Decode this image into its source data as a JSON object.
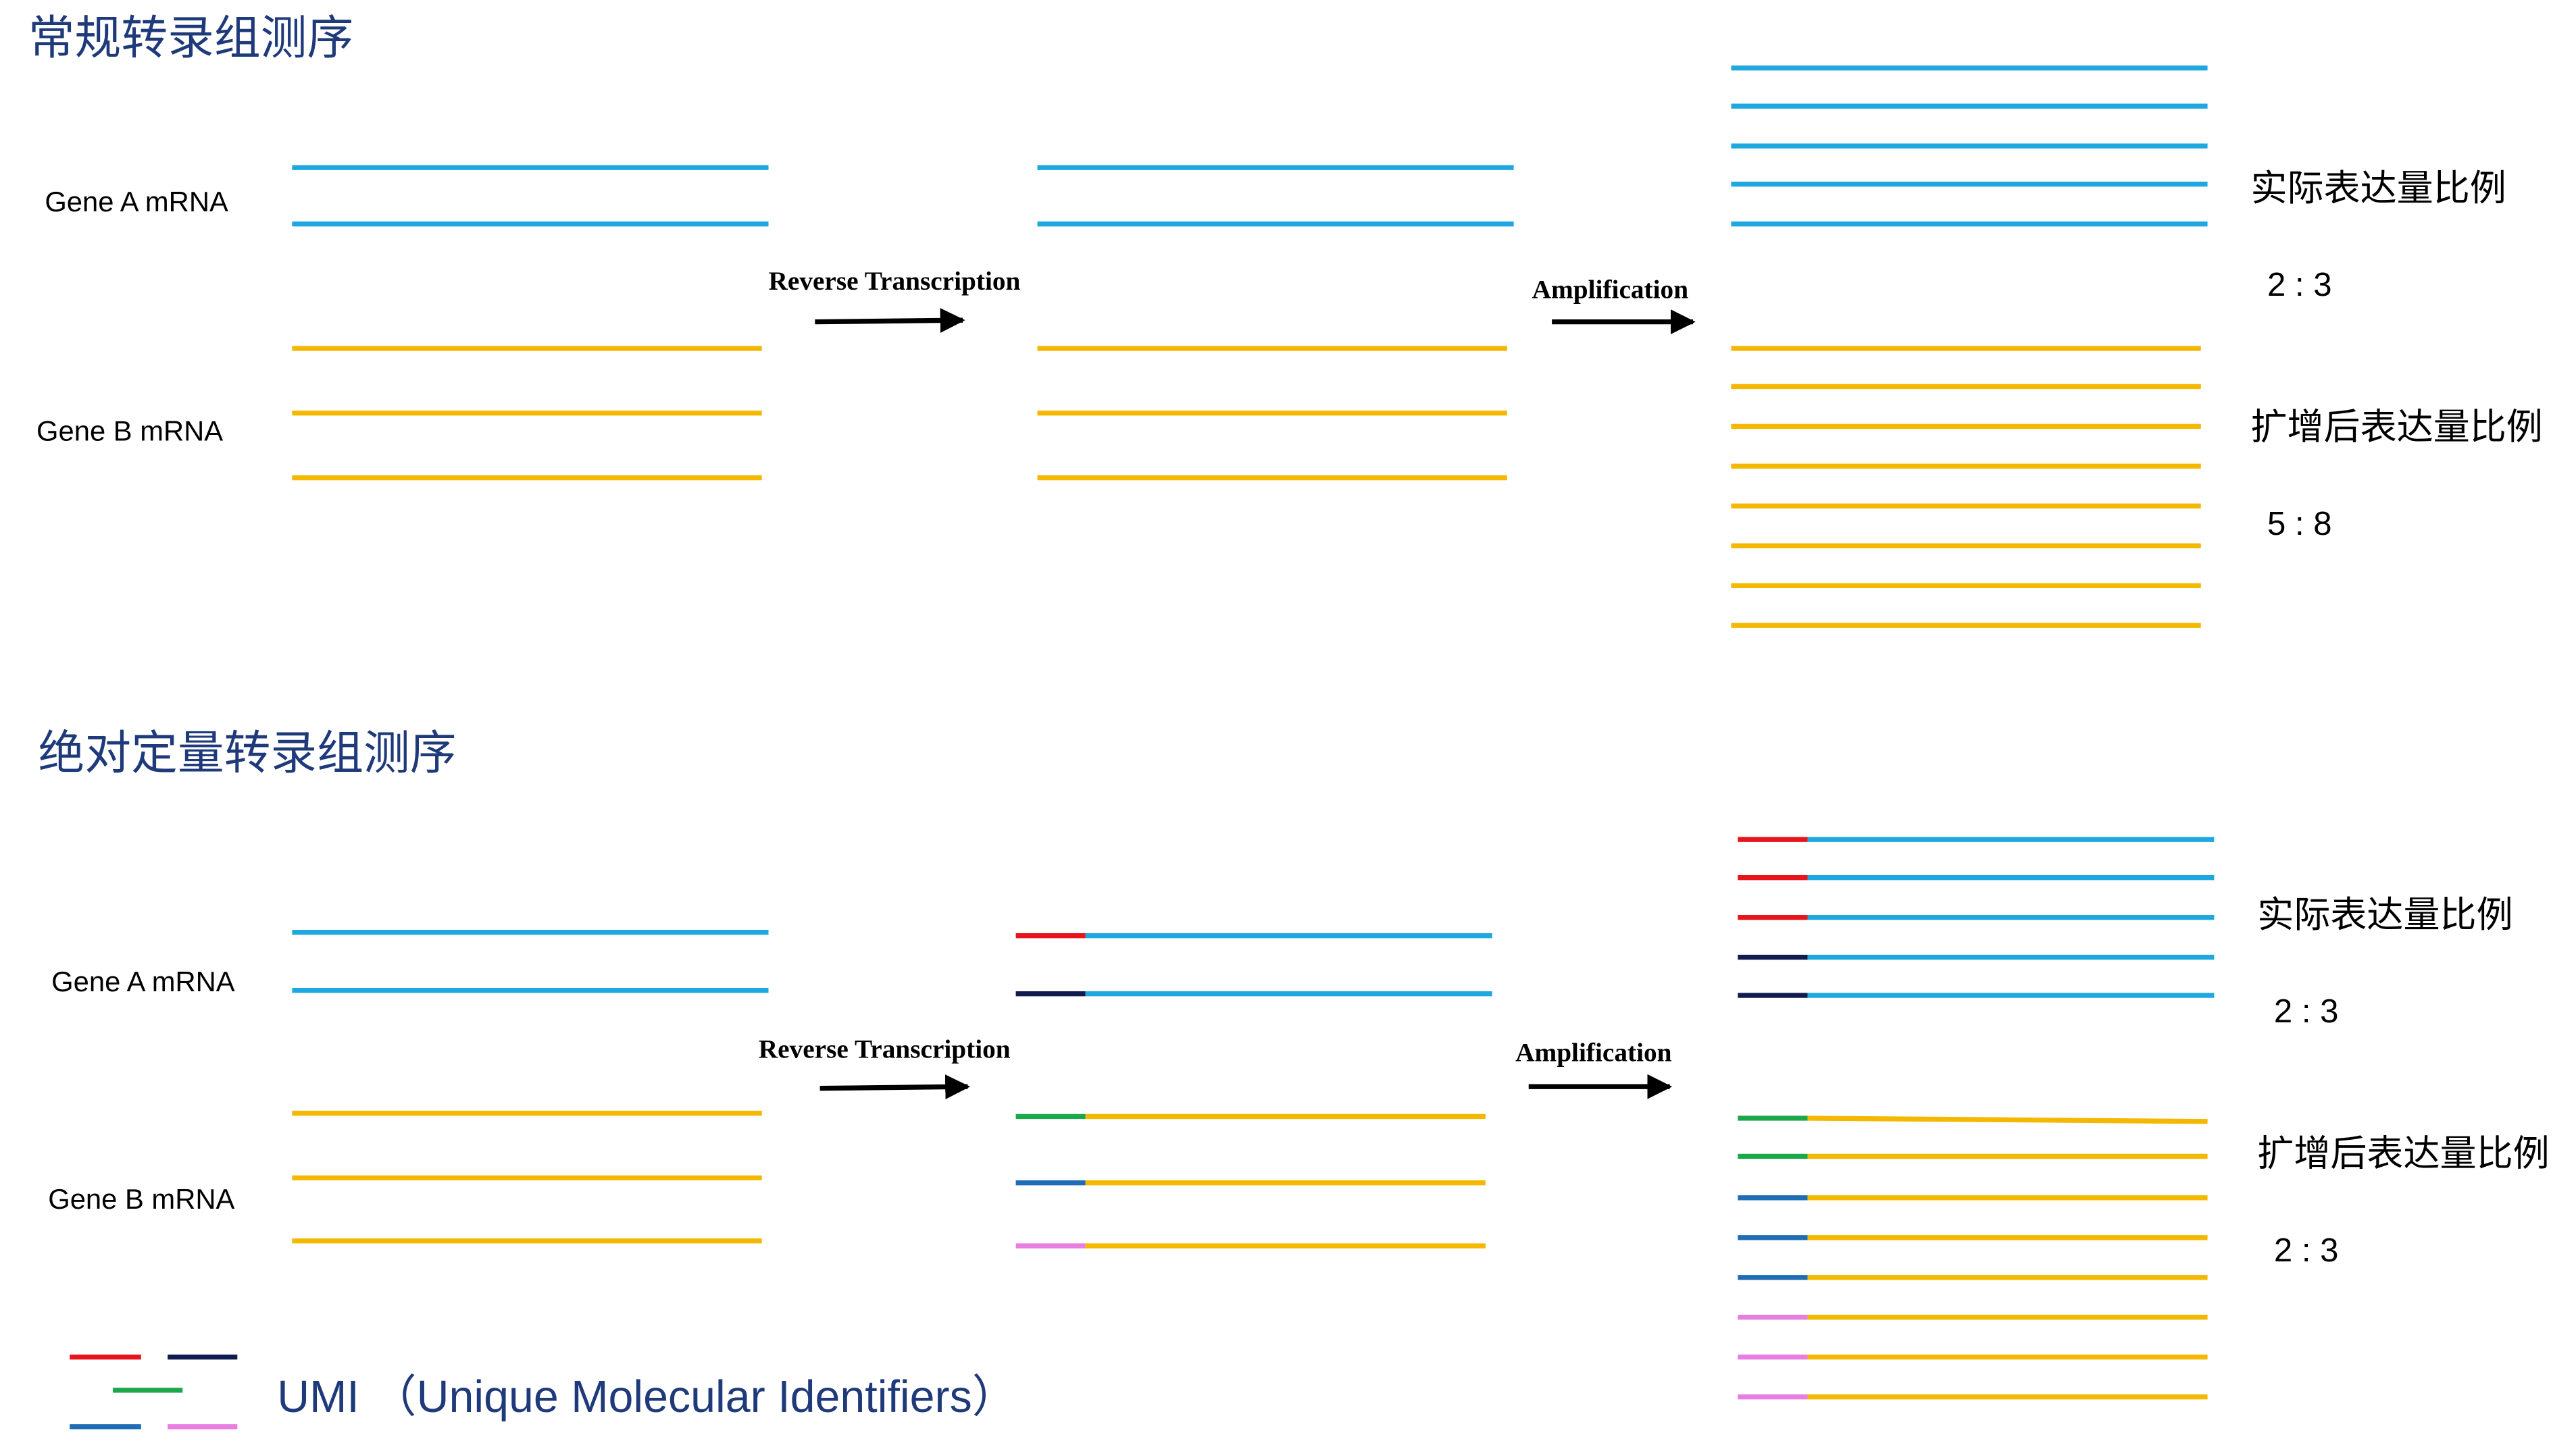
{
  "sections": [
    {
      "title": "常规转录组测序",
      "gene_a": "Gene A mRNA",
      "gene_b": "Gene B mRNA",
      "step1": "Reverse Transcription",
      "step2": "Amplification",
      "actual_label": "实际表达量比例",
      "actual_ratio": "2 : 3",
      "amplified_label": "扩增后表达量比例",
      "amplified_ratio": "5 : 8"
    },
    {
      "title": "绝对定量转录组测序",
      "gene_a": "Gene A mRNA",
      "gene_b": "Gene  B mRNA",
      "step1": "Reverse Transcription",
      "step2": "Amplification",
      "actual_label": "实际表达量比例",
      "actual_ratio": "2 : 3",
      "amplified_label": "扩增后表达量比例",
      "amplified_ratio": "2 : 3"
    }
  ],
  "legend": {
    "label": "UMI （Unique Molecular Identifiers）"
  }
}
